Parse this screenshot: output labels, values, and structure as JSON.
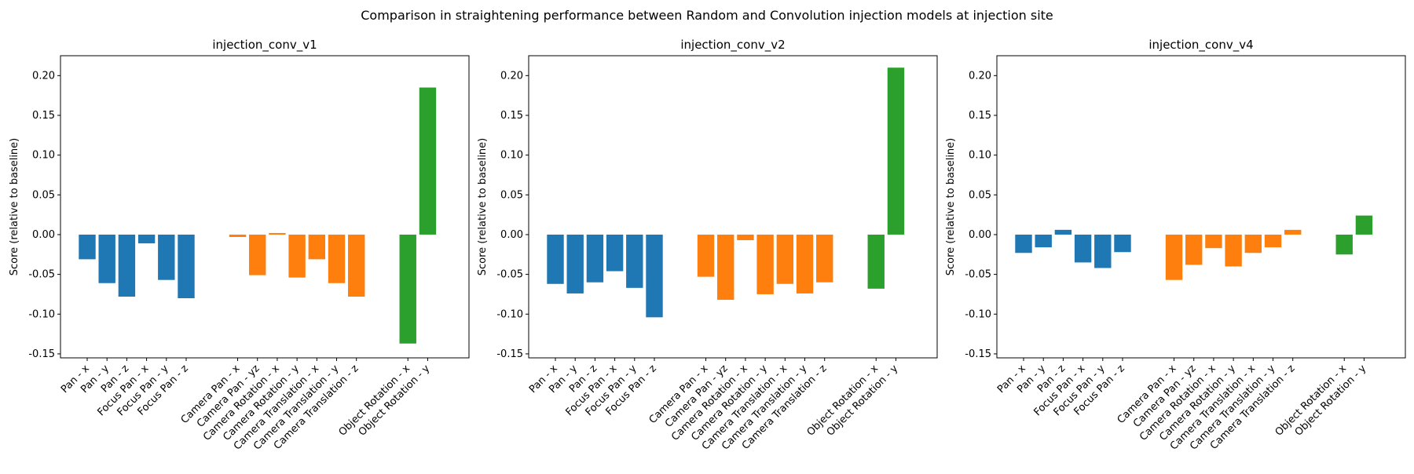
{
  "figure": {
    "title": "Comparison in straightening performance between Random and Convolution injection models at injection site"
  },
  "colors": {
    "group1": "#1f77b4",
    "group2": "#ff7f0e",
    "group3": "#2ca02c"
  },
  "chart_data": [
    {
      "type": "bar",
      "title": "injection_conv_v1",
      "ylabel": "Score (relative to baseline)",
      "ylim": [
        -0.155,
        0.225
      ],
      "yticks": [
        "-0.15",
        "-0.10",
        "-0.05",
        "0.00",
        "0.05",
        "0.10",
        "0.15",
        "0.20"
      ],
      "categories": [
        "Pan - x",
        "Pan - y",
        "Pan - z",
        "Focus Pan - x",
        "Focus Pan - y",
        "Focus Pan - z",
        "Camera Pan - x",
        "Camera Pan - yz",
        "Camera Rotation - x",
        "Camera Rotation - y",
        "Camera Translation - x",
        "Camera Translation - y",
        "Camera Translation - z",
        "Object Rotation - x",
        "Object Rotation - y"
      ],
      "groups": [
        0,
        0,
        0,
        0,
        0,
        0,
        1,
        1,
        1,
        1,
        1,
        1,
        1,
        2,
        2
      ],
      "values": [
        -0.031,
        -0.061,
        -0.078,
        -0.011,
        -0.057,
        -0.08,
        -0.003,
        -0.051,
        0.002,
        -0.054,
        -0.031,
        -0.061,
        -0.078,
        -0.137,
        0.185
      ]
    },
    {
      "type": "bar",
      "title": "injection_conv_v2",
      "ylabel": "Score (relative to baseline)",
      "ylim": [
        -0.155,
        0.225
      ],
      "yticks": [
        "-0.15",
        "-0.10",
        "-0.05",
        "0.00",
        "0.05",
        "0.10",
        "0.15",
        "0.20"
      ],
      "categories": [
        "Pan - x",
        "Pan - y",
        "Pan - z",
        "Focus Pan - x",
        "Focus Pan - y",
        "Focus Pan - z",
        "Camera Pan - x",
        "Camera Pan - yz",
        "Camera Rotation - x",
        "Camera Rotation - y",
        "Camera Translation - x",
        "Camera Translation - y",
        "Camera Translation - z",
        "Object Rotation - x",
        "Object Rotation - y"
      ],
      "groups": [
        0,
        0,
        0,
        0,
        0,
        0,
        1,
        1,
        1,
        1,
        1,
        1,
        1,
        2,
        2
      ],
      "values": [
        -0.062,
        -0.074,
        -0.06,
        -0.046,
        -0.067,
        -0.104,
        -0.053,
        -0.082,
        -0.007,
        -0.075,
        -0.062,
        -0.074,
        -0.06,
        -0.068,
        0.21
      ]
    },
    {
      "type": "bar",
      "title": "injection_conv_v4",
      "ylabel": "Score (relative to baseline)",
      "ylim": [
        -0.155,
        0.225
      ],
      "yticks": [
        "-0.15",
        "-0.10",
        "-0.05",
        "0.00",
        "0.05",
        "0.10",
        "0.15",
        "0.20"
      ],
      "categories": [
        "Pan - x",
        "Pan - y",
        "Pan - z",
        "Focus Pan - x",
        "Focus Pan - y",
        "Focus Pan - z",
        "Camera Pan - x",
        "Camera Pan - yz",
        "Camera Rotation - x",
        "Camera Rotation - y",
        "Camera Translation - x",
        "Camera Translation - y",
        "Camera Translation - z",
        "Object Rotation - x",
        "Object Rotation - y"
      ],
      "groups": [
        0,
        0,
        0,
        0,
        0,
        0,
        1,
        1,
        1,
        1,
        1,
        1,
        1,
        2,
        2
      ],
      "values": [
        -0.023,
        -0.016,
        0.006,
        -0.035,
        -0.042,
        -0.022,
        -0.057,
        -0.038,
        -0.017,
        -0.04,
        -0.023,
        -0.016,
        0.006,
        -0.025,
        0.024
      ]
    }
  ]
}
